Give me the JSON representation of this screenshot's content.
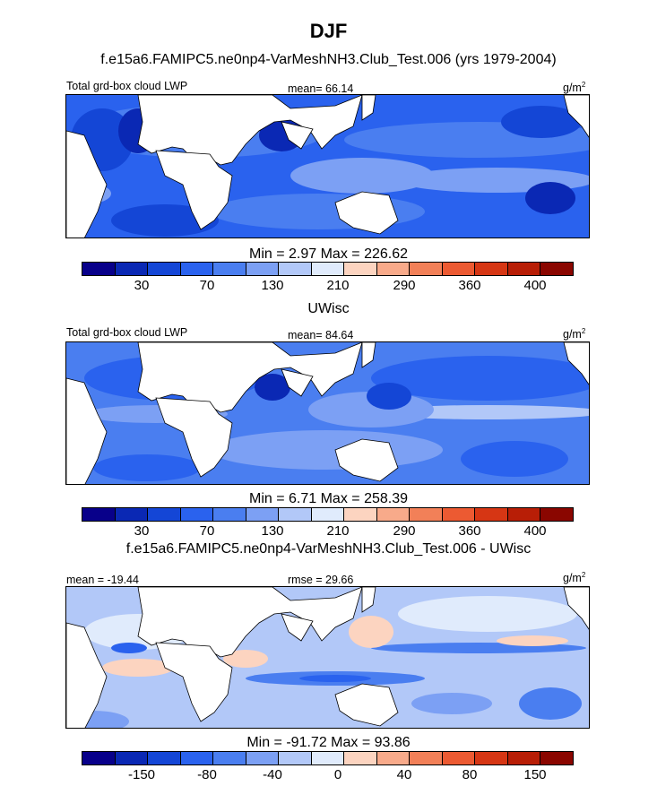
{
  "title": "DJF",
  "colors": [
    "#08008a",
    "#0a28b4",
    "#1446d6",
    "#2a62ee",
    "#4a7ef0",
    "#7ca0f4",
    "#b2c8f8",
    "#e0ebfc",
    "#fcd4c0",
    "#f8aa8a",
    "#f28058",
    "#ec5a32",
    "#d63614",
    "#b81e06",
    "#8a0600"
  ],
  "panels": [
    {
      "subtitle": "f.e15a6.FAMIPC5.ne0np4-VarMeshNH3.Club_Test.006 (yrs 1979-2004)",
      "left": "Total grd-box cloud LWP",
      "center": "mean=  66.14",
      "units": "g/m",
      "units_exp": "2",
      "minmax": "Min =   2.97 Max = 226.62",
      "ticks": [
        "30",
        "70",
        "130",
        "210",
        "290",
        "360",
        "400"
      ]
    },
    {
      "subtitle": "UWisc",
      "left": "Total grd-box cloud LWP",
      "center": "mean=  84.64",
      "units": "g/m",
      "units_exp": "2",
      "minmax": "Min =   6.71 Max = 258.39",
      "ticks": [
        "30",
        "70",
        "130",
        "210",
        "290",
        "360",
        "400"
      ]
    },
    {
      "subtitle": "f.e15a6.FAMIPC5.ne0np4-VarMeshNH3.Club_Test.006 - UWisc",
      "left": "mean = -19.44",
      "center": "rmse =  29.66",
      "units": "g/m",
      "units_exp": "2",
      "minmax": "Min = -91.72 Max =  93.86",
      "ticks": [
        "-150",
        "-80",
        "-40",
        "0",
        "40",
        "80",
        "150"
      ]
    }
  ],
  "chart_data": [
    {
      "type": "heatmap",
      "title": "DJF",
      "subtitle": "f.e15a6.FAMIPC5.ne0np4-VarMeshNH3.Club_Test.006 (yrs 1979-2004)",
      "variable": "Total grd-box cloud LWP",
      "units": "g/m2",
      "mean": 66.14,
      "min": 2.97,
      "max": 226.62,
      "colorbar_ticks": [
        30,
        70,
        130,
        210,
        290,
        360,
        400
      ]
    },
    {
      "type": "heatmap",
      "title": "UWisc",
      "variable": "Total grd-box cloud LWP",
      "units": "g/m2",
      "mean": 84.64,
      "min": 6.71,
      "max": 258.39,
      "colorbar_ticks": [
        30,
        70,
        130,
        210,
        290,
        360,
        400
      ]
    },
    {
      "type": "heatmap",
      "title": "f.e15a6.FAMIPC5.ne0np4-VarMeshNH3.Club_Test.006 - UWisc",
      "units": "g/m2",
      "mean": -19.44,
      "rmse": 29.66,
      "min": -91.72,
      "max": 93.86,
      "colorbar_ticks": [
        -150,
        -80,
        -40,
        0,
        40,
        80,
        150
      ]
    }
  ]
}
